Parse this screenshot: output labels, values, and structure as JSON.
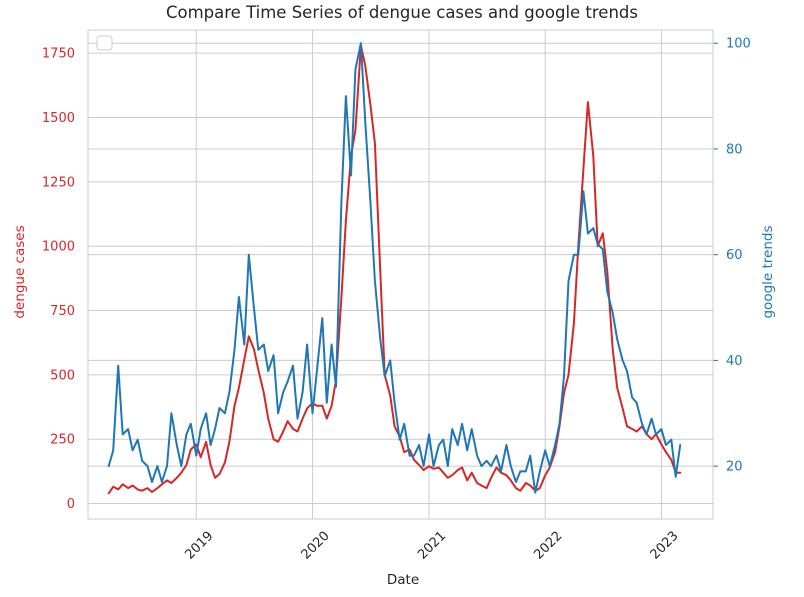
{
  "chart_data": {
    "type": "line",
    "title": "Compare Time Series of dengue cases and google trends",
    "xlabel": "Date",
    "x_ticks": [
      "2019",
      "2020",
      "2021",
      "2022",
      "2023"
    ],
    "xlim": [
      "2018-01-26",
      "2023-06-12"
    ],
    "grid": true,
    "legend": "top-left (empty)",
    "y_left": {
      "label": "dengue cases",
      "color": "#d62728",
      "lim": [
        -60,
        1840
      ],
      "ticks": [
        0,
        250,
        500,
        750,
        1000,
        1250,
        1500,
        1750
      ]
    },
    "y_right": {
      "label": "google trends",
      "color": "#1f77b4",
      "lim": [
        10,
        102.5
      ],
      "ticks": [
        20,
        40,
        60,
        80,
        100
      ]
    },
    "series": [
      {
        "axis": "left",
        "color": "#d62728",
        "x": [
          "2018-04-01",
          "2018-04-15",
          "2018-05-01",
          "2018-05-15",
          "2018-06-01",
          "2018-06-15",
          "2018-07-01",
          "2018-07-15",
          "2018-08-01",
          "2018-08-15",
          "2018-09-01",
          "2018-09-15",
          "2018-10-01",
          "2018-10-15",
          "2018-11-01",
          "2018-11-15",
          "2018-12-01",
          "2018-12-15",
          "2019-01-01",
          "2019-01-15",
          "2019-02-01",
          "2019-02-15",
          "2019-03-01",
          "2019-03-15",
          "2019-04-01",
          "2019-04-15",
          "2019-05-01",
          "2019-05-15",
          "2019-06-01",
          "2019-06-15",
          "2019-07-01",
          "2019-07-15",
          "2019-08-01",
          "2019-08-15",
          "2019-09-01",
          "2019-09-15",
          "2019-10-01",
          "2019-10-15",
          "2019-11-01",
          "2019-11-15",
          "2019-12-01",
          "2019-12-15",
          "2020-01-01",
          "2020-01-15",
          "2020-02-01",
          "2020-02-15",
          "2020-03-01",
          "2020-03-15",
          "2020-04-01",
          "2020-04-15",
          "2020-05-01",
          "2020-05-15",
          "2020-06-01",
          "2020-06-15",
          "2020-07-01",
          "2020-07-15",
          "2020-08-01",
          "2020-08-15",
          "2020-09-01",
          "2020-09-15",
          "2020-10-01",
          "2020-10-15",
          "2020-11-01",
          "2020-11-15",
          "2020-12-01",
          "2020-12-15",
          "2021-01-01",
          "2021-01-15",
          "2021-02-01",
          "2021-02-15",
          "2021-03-01",
          "2021-03-15",
          "2021-04-01",
          "2021-04-15",
          "2021-05-01",
          "2021-05-15",
          "2021-06-01",
          "2021-06-15",
          "2021-07-01",
          "2021-07-15",
          "2021-08-01",
          "2021-08-15",
          "2021-09-01",
          "2021-09-15",
          "2021-10-01",
          "2021-10-15",
          "2021-11-01",
          "2021-11-15",
          "2021-12-01",
          "2021-12-15",
          "2022-01-01",
          "2022-01-15",
          "2022-02-01",
          "2022-02-15",
          "2022-03-01",
          "2022-03-15",
          "2022-04-01",
          "2022-04-15",
          "2022-05-01",
          "2022-05-15",
          "2022-06-01",
          "2022-06-15",
          "2022-07-01",
          "2022-07-15",
          "2022-08-01",
          "2022-08-15",
          "2022-09-01",
          "2022-09-15",
          "2022-10-01",
          "2022-10-15",
          "2022-11-01",
          "2022-11-15",
          "2022-12-01",
          "2022-12-15",
          "2023-01-01",
          "2023-01-15",
          "2023-02-01",
          "2023-02-15",
          "2023-03-01"
        ],
        "y": [
          40,
          65,
          55,
          75,
          60,
          70,
          55,
          50,
          60,
          45,
          60,
          75,
          90,
          80,
          100,
          120,
          150,
          210,
          230,
          180,
          240,
          150,
          100,
          115,
          160,
          240,
          380,
          450,
          560,
          650,
          600,
          520,
          430,
          330,
          250,
          240,
          280,
          320,
          290,
          280,
          330,
          370,
          390,
          380,
          380,
          330,
          380,
          480,
          800,
          1100,
          1350,
          1450,
          1780,
          1700,
          1550,
          1400,
          900,
          500,
          420,
          300,
          260,
          200,
          210,
          170,
          150,
          130,
          145,
          135,
          140,
          120,
          100,
          110,
          130,
          140,
          90,
          120,
          80,
          70,
          60,
          100,
          140,
          120,
          110,
          90,
          60,
          50,
          80,
          70,
          50,
          60,
          110,
          140,
          200,
          300,
          430,
          500,
          700,
          1000,
          1300,
          1560,
          1350,
          1000,
          1050,
          900,
          600,
          450,
          370,
          300,
          290,
          280,
          300,
          270,
          250,
          270,
          230,
          200,
          170,
          120,
          120
        ]
      },
      {
        "axis": "right",
        "color": "#1f77b4",
        "x": [
          "2018-04-01",
          "2018-04-15",
          "2018-05-01",
          "2018-05-15",
          "2018-06-01",
          "2018-06-15",
          "2018-07-01",
          "2018-07-15",
          "2018-08-01",
          "2018-08-15",
          "2018-09-01",
          "2018-09-15",
          "2018-10-01",
          "2018-10-15",
          "2018-11-01",
          "2018-11-15",
          "2018-12-01",
          "2018-12-15",
          "2019-01-01",
          "2019-01-15",
          "2019-02-01",
          "2019-02-15",
          "2019-03-01",
          "2019-03-15",
          "2019-04-01",
          "2019-04-15",
          "2019-05-01",
          "2019-05-15",
          "2019-06-01",
          "2019-06-15",
          "2019-07-01",
          "2019-07-15",
          "2019-08-01",
          "2019-08-15",
          "2019-09-01",
          "2019-09-15",
          "2019-10-01",
          "2019-10-15",
          "2019-11-01",
          "2019-11-15",
          "2019-12-01",
          "2019-12-15",
          "2020-01-01",
          "2020-01-15",
          "2020-02-01",
          "2020-02-15",
          "2020-03-01",
          "2020-03-15",
          "2020-04-01",
          "2020-04-15",
          "2020-05-01",
          "2020-05-15",
          "2020-06-01",
          "2020-06-15",
          "2020-07-01",
          "2020-07-15",
          "2020-08-01",
          "2020-08-15",
          "2020-09-01",
          "2020-09-15",
          "2020-10-01",
          "2020-10-15",
          "2020-11-01",
          "2020-11-15",
          "2020-12-01",
          "2020-12-15",
          "2021-01-01",
          "2021-01-15",
          "2021-02-01",
          "2021-02-15",
          "2021-03-01",
          "2021-03-15",
          "2021-04-01",
          "2021-04-15",
          "2021-05-01",
          "2021-05-15",
          "2021-06-01",
          "2021-06-15",
          "2021-07-01",
          "2021-07-15",
          "2021-08-01",
          "2021-08-15",
          "2021-09-01",
          "2021-09-15",
          "2021-10-01",
          "2021-10-15",
          "2021-11-01",
          "2021-11-15",
          "2021-12-01",
          "2021-12-15",
          "2022-01-01",
          "2022-01-15",
          "2022-02-01",
          "2022-02-15",
          "2022-03-01",
          "2022-03-15",
          "2022-04-01",
          "2022-04-15",
          "2022-05-01",
          "2022-05-15",
          "2022-06-01",
          "2022-06-15",
          "2022-07-01",
          "2022-07-15",
          "2022-08-01",
          "2022-08-15",
          "2022-09-01",
          "2022-09-15",
          "2022-10-01",
          "2022-10-15",
          "2022-11-01",
          "2022-11-15",
          "2022-12-01",
          "2022-12-15",
          "2023-01-01",
          "2023-01-15",
          "2023-02-01",
          "2023-02-15",
          "2023-03-01"
        ],
        "y": [
          20,
          23,
          39,
          26,
          27,
          23,
          25,
          21,
          20,
          17,
          20,
          17,
          20,
          30,
          24,
          20,
          26,
          28,
          22,
          27,
          30,
          24,
          27,
          31,
          30,
          34,
          42,
          52,
          43,
          60,
          50,
          42,
          43,
          38,
          41,
          30,
          34,
          36,
          39,
          29,
          34,
          43,
          30,
          38,
          48,
          32,
          43,
          35,
          70,
          90,
          75,
          95,
          100,
          85,
          70,
          55,
          44,
          37,
          40,
          32,
          25,
          28,
          22,
          22,
          24,
          20,
          26,
          20,
          24,
          25,
          20,
          27,
          24,
          28,
          23,
          27,
          22,
          20,
          21,
          20,
          22,
          19,
          24,
          20,
          17,
          19,
          19,
          22,
          15,
          19,
          23,
          20,
          24,
          28,
          37,
          55,
          60,
          60,
          72,
          64,
          65,
          62,
          61,
          53,
          49,
          44,
          40,
          38,
          33,
          32,
          28,
          26,
          29,
          26,
          27,
          24,
          25,
          18,
          24
        ]
      }
    ]
  }
}
